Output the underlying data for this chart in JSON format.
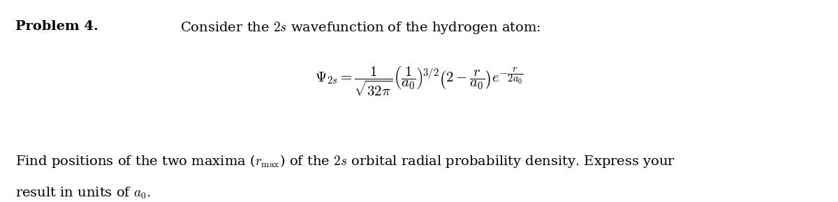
{
  "background_color": "#ffffff",
  "problem_label": "Problem 4.",
  "header_text": "Consider the $2s$ wavefunction of the hydrogen atom:",
  "equation": "$\\Psi_{2s} = \\dfrac{1}{\\sqrt{32\\pi}} \\left(\\dfrac{1}{a_0}\\right)^{\\!3/2} \\left(2 - \\dfrac{r}{a_0}\\right) e^{-\\dfrac{r}{2a_0}}$",
  "footer_line1": "Find positions of the two maxima ($r_{\\mathrm{max}}$) of the $2s$ orbital radial probability density. Express your",
  "footer_line2": "result in units of $a_0$.",
  "fig_width": 12.0,
  "fig_height": 2.9,
  "dpi": 100,
  "fontsize_main": 14,
  "fontsize_eq": 15
}
